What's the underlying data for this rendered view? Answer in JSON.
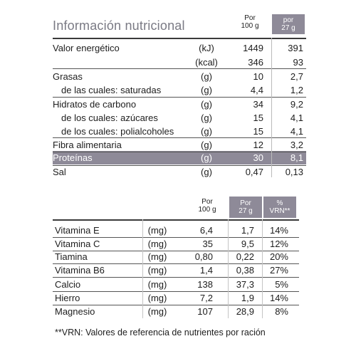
{
  "table1": {
    "title": "Información nutricional",
    "col_per100": "Por\n100 g",
    "col_per27": "por\n27 g",
    "rows": [
      {
        "label": "Valor energético",
        "unit": "(kJ)",
        "per100": "1449",
        "per27": "391"
      },
      {
        "label": "",
        "unit": "(kcal)",
        "per100": "346",
        "per27": "93"
      },
      {
        "label": "Grasas",
        "unit": "(g)",
        "per100": "10",
        "per27": "2,7"
      },
      {
        "label": "de las cuales: saturadas",
        "unit": "(g)",
        "per100": "4,4",
        "per27": "1,2"
      },
      {
        "label": "Hidratos de carbono",
        "unit": "(g)",
        "per100": "34",
        "per27": "9,2"
      },
      {
        "label": "de los cuales: azúcares",
        "unit": "(g)",
        "per100": "15",
        "per27": "4,1"
      },
      {
        "label": "de los cuales: polialcoholes",
        "unit": "(g)",
        "per100": "15",
        "per27": "4,1"
      },
      {
        "label": "Fibra alimentaria",
        "unit": "(g)",
        "per100": "12",
        "per27": "3,2"
      },
      {
        "label": "Proteínas",
        "unit": "(g)",
        "per100": "30",
        "per27": "8,1"
      },
      {
        "label": "Sal",
        "unit": "(g)",
        "per100": "0,47",
        "per27": "0,13"
      }
    ]
  },
  "table2": {
    "col_per100": "Por\n100 g",
    "col_per27": "Por\n27 g",
    "col_vrn": "%\nVRN**",
    "rows": [
      {
        "label": "Vitamina E",
        "unit": "(mg)",
        "per100": "6,4",
        "per27": "1,7",
        "vrn": "14%"
      },
      {
        "label": "Vitamina C",
        "unit": "(mg)",
        "per100": "35",
        "per27": "9,5",
        "vrn": "12%"
      },
      {
        "label": "Tiamina",
        "unit": "(mg)",
        "per100": "0,80",
        "per27": "0,22",
        "vrn": "20%"
      },
      {
        "label": "Vitamina B6",
        "unit": "(mg)",
        "per100": "1,4",
        "per27": "0,38",
        "vrn": "27%"
      },
      {
        "label": "Calcio",
        "unit": "(mg)",
        "per100": "138",
        "per27": "37,3",
        "vrn": "5%"
      },
      {
        "label": "Hierro",
        "unit": "(mg)",
        "per100": "7,2",
        "per27": "1,9",
        "vrn": "14%"
      },
      {
        "label": "Magnesio",
        "unit": "(mg)",
        "per100": "107",
        "per27": "28,9",
        "vrn": "8%"
      }
    ]
  },
  "footnote": "**VRN: Valores de referencia de nutrientes por ración",
  "colors": {
    "band": "#8e8a98",
    "light_band": "#c9c6cf",
    "title": "#7a7a84"
  }
}
